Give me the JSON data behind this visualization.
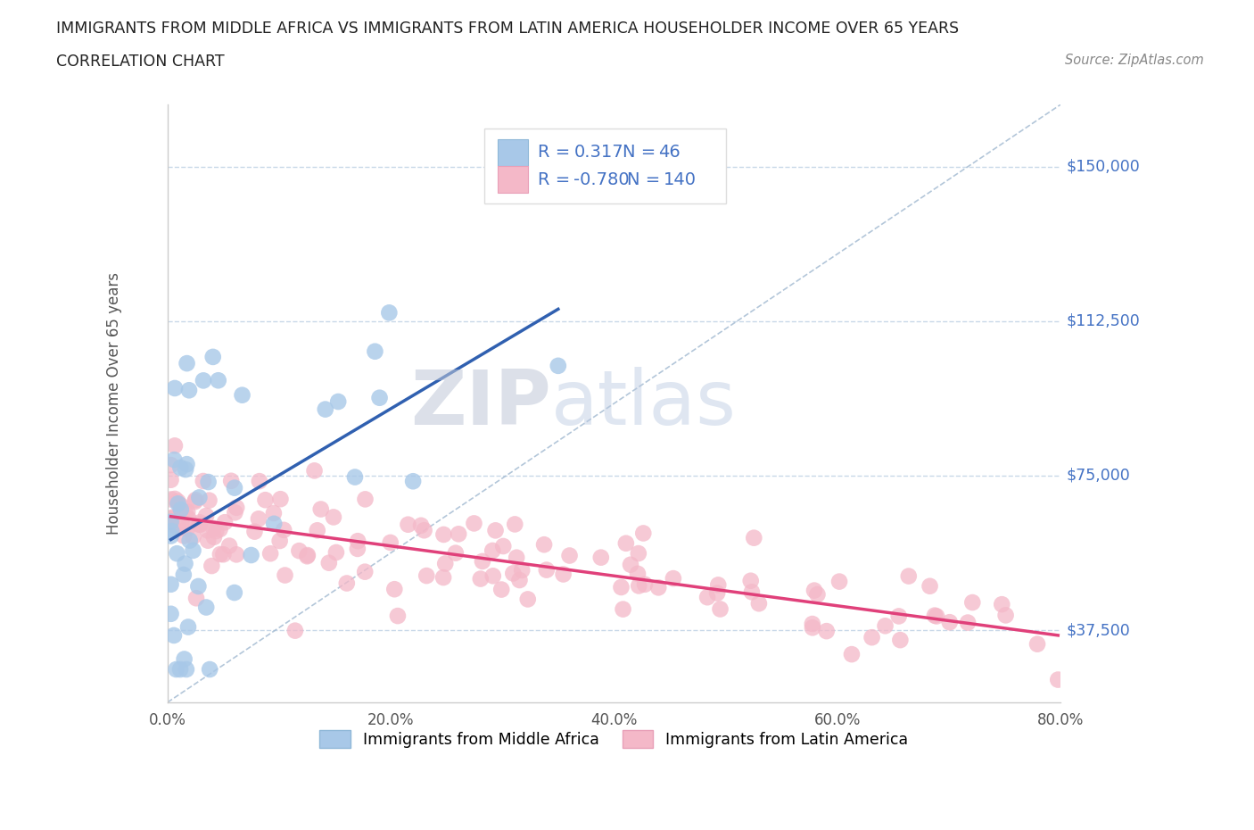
{
  "title_line1": "IMMIGRANTS FROM MIDDLE AFRICA VS IMMIGRANTS FROM LATIN AMERICA HOUSEHOLDER INCOME OVER 65 YEARS",
  "title_line2": "CORRELATION CHART",
  "source": "Source: ZipAtlas.com",
  "ylabel": "Householder Income Over 65 years",
  "xlabel_ticks": [
    "0.0%",
    "20.0%",
    "40.0%",
    "60.0%",
    "80.0%"
  ],
  "ytick_labels": [
    "$37,500",
    "$75,000",
    "$112,500",
    "$150,000"
  ],
  "ytick_values": [
    37500,
    75000,
    112500,
    150000
  ],
  "blue_R": 0.317,
  "blue_N": 46,
  "pink_R": -0.78,
  "pink_N": 140,
  "blue_color": "#a8c8e8",
  "pink_color": "#f4b8c8",
  "blue_line_color": "#3060b0",
  "pink_line_color": "#e0407a",
  "blue_label": "Immigrants from Middle Africa",
  "pink_label": "Immigrants from Latin America",
  "watermark_zip": "ZIP",
  "watermark_atlas": "atlas",
  "background_color": "#ffffff",
  "grid_color": "#c8d8e8",
  "ref_line_color": "#a0b8d0",
  "xmin": 0.0,
  "xmax": 0.8,
  "ymin": 20000,
  "ymax": 165000,
  "legend_R_color": "#4472c4",
  "legend_text_color": "#333333",
  "title_color": "#222222",
  "source_color": "#888888",
  "ylabel_color": "#555555",
  "xtick_color": "#555555",
  "yright_color": "#4472c4"
}
